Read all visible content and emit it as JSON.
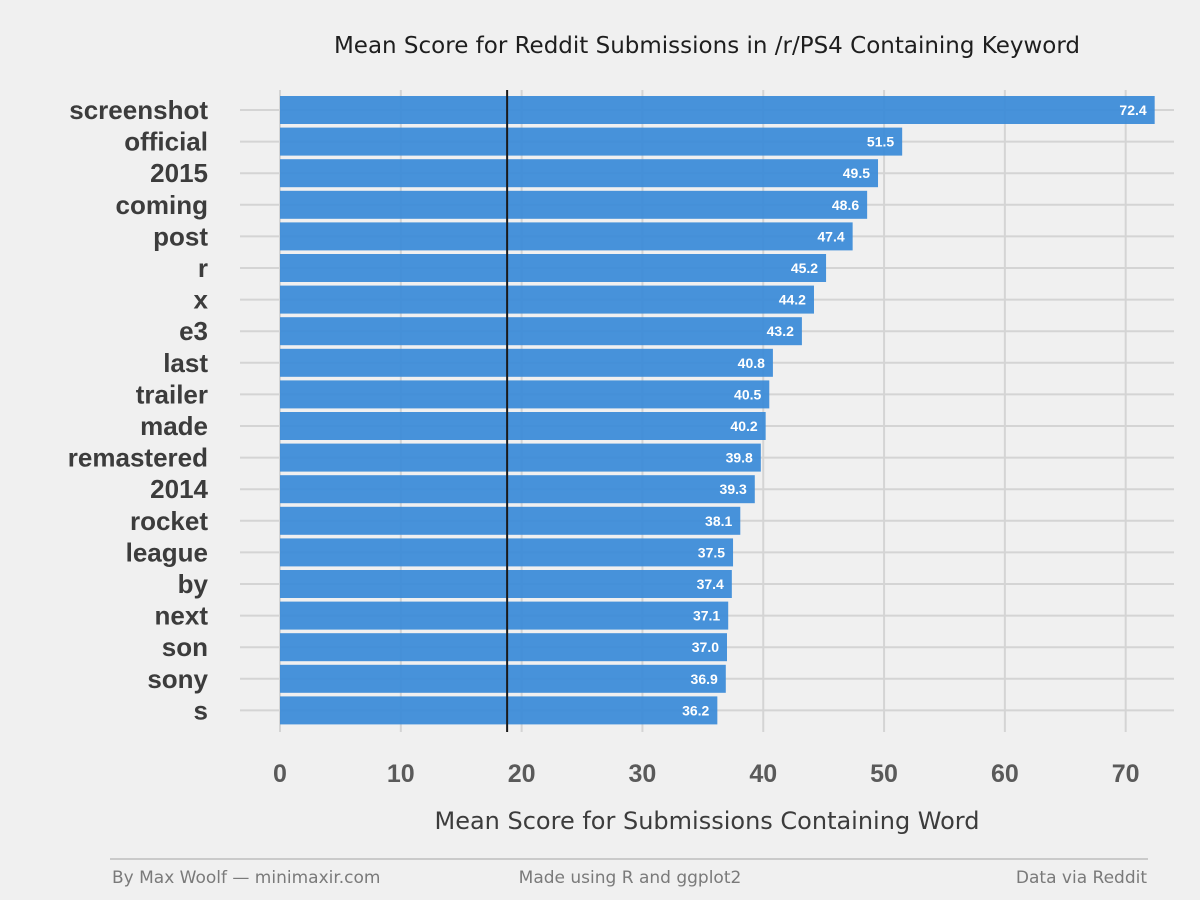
{
  "colors": {
    "background": "#f0f0f0",
    "bar": "#3d8cd8",
    "grid": "#d4d4d4",
    "reference_line": "#1a1a1a",
    "footer_rule": "#b4b4b4"
  },
  "chart_data": {
    "type": "bar",
    "orientation": "horizontal",
    "title": "Mean Score for Reddit Submissions in /r/PS4 Containing Keyword",
    "xlabel": "Mean Score for Submissions Containing Word",
    "ylabel": "",
    "xlim": [
      0,
      74
    ],
    "x_ticks": [
      0,
      10,
      20,
      30,
      40,
      50,
      60,
      70
    ],
    "reference_line_value": 18.8,
    "categories": [
      "screenshot",
      "official",
      "2015",
      "coming",
      "post",
      "r",
      "x",
      "e3",
      "last",
      "trailer",
      "made",
      "remastered",
      "2014",
      "rocket",
      "league",
      "by",
      "next",
      "son",
      "sony",
      "s"
    ],
    "values": [
      72.4,
      51.5,
      49.5,
      48.6,
      47.4,
      45.2,
      44.2,
      43.2,
      40.8,
      40.5,
      40.2,
      39.8,
      39.3,
      38.1,
      37.5,
      37.4,
      37.1,
      37.0,
      36.9,
      36.2
    ],
    "value_labels": [
      "72.4",
      "51.5",
      "49.5",
      "48.6",
      "47.4",
      "45.2",
      "44.2",
      "43.2",
      "40.8",
      "40.5",
      "40.2",
      "39.8",
      "39.3",
      "38.1",
      "37.5",
      "37.4",
      "37.1",
      "37.0",
      "36.9",
      "36.2"
    ],
    "grid": true
  },
  "footer": {
    "left": "By Max Woolf — minimaxir.com",
    "center": "Made using R and ggplot2",
    "right": "Data via Reddit"
  }
}
